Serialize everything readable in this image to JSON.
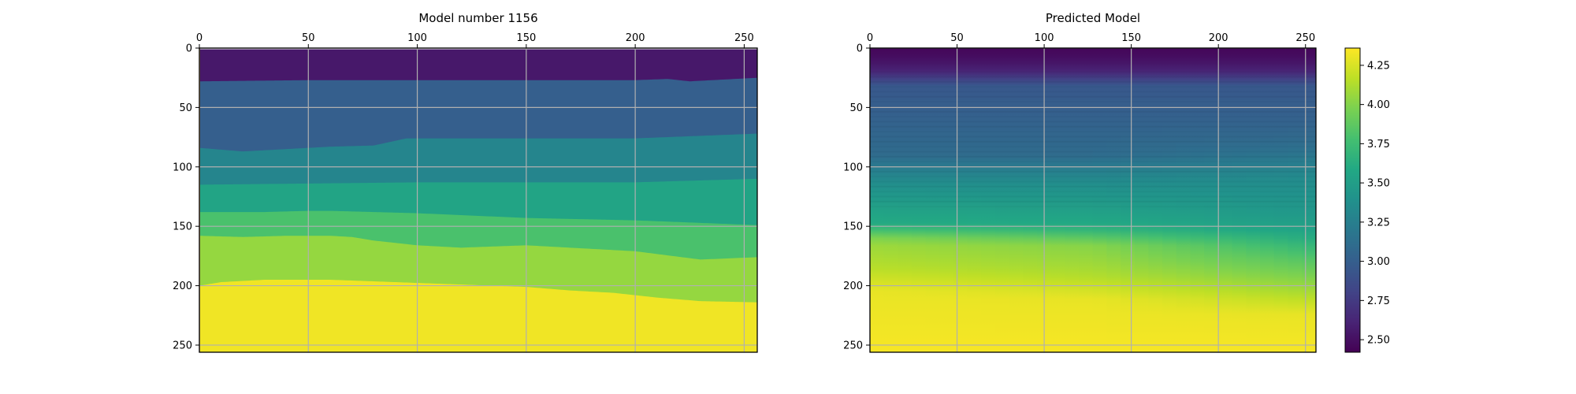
{
  "chart_data": [
    {
      "type": "heatmap",
      "title": "Model number 1156",
      "x_axis": {
        "position": "top",
        "range": [
          0,
          256
        ],
        "ticks": [
          0,
          50,
          100,
          150,
          200,
          250
        ]
      },
      "y_axis": {
        "inverted": true,
        "range": [
          0,
          256
        ],
        "ticks": [
          0,
          50,
          100,
          150,
          200,
          250
        ]
      },
      "grid": true,
      "colormap": "viridis",
      "value_range": [
        2.42,
        4.36
      ],
      "layer_values": [
        2.55,
        3.0,
        3.3,
        3.55,
        3.8,
        4.05,
        4.32
      ],
      "layer_boundaries": [
        {
          "x": [
            0,
            50,
            100,
            150,
            200,
            256
          ],
          "depth": [
            1,
            1,
            1,
            1,
            1,
            1
          ]
        },
        {
          "x": [
            0,
            50,
            100,
            150,
            200,
            215,
            225,
            256
          ],
          "depth": [
            28,
            27,
            27,
            27,
            27,
            26,
            28,
            25
          ]
        },
        {
          "x": [
            0,
            20,
            40,
            60,
            80,
            95,
            100,
            150,
            200,
            256
          ],
          "depth": [
            84,
            87,
            85,
            83,
            82,
            76,
            76,
            76,
            76,
            72
          ]
        },
        {
          "x": [
            0,
            50,
            100,
            150,
            200,
            256
          ],
          "depth": [
            115,
            114,
            113,
            113,
            113,
            110
          ]
        },
        {
          "x": [
            0,
            30,
            50,
            60,
            100,
            150,
            200,
            256
          ],
          "depth": [
            138,
            138,
            137,
            137,
            139,
            143,
            145,
            149
          ]
        },
        {
          "x": [
            0,
            20,
            40,
            60,
            70,
            80,
            100,
            120,
            150,
            200,
            230,
            256
          ],
          "depth": [
            158,
            159,
            158,
            158,
            159,
            162,
            166,
            168,
            166,
            171,
            178,
            176
          ]
        },
        {
          "x": [
            0,
            10,
            30,
            60,
            90,
            120,
            150,
            170,
            190,
            210,
            230,
            256
          ],
          "depth": [
            200,
            197,
            195,
            195,
            197,
            199,
            201,
            204,
            206,
            210,
            213,
            214
          ]
        }
      ]
    },
    {
      "type": "heatmap",
      "title": "Predicted Model",
      "x_axis": {
        "position": "top",
        "range": [
          0,
          256
        ],
        "ticks": [
          0,
          50,
          100,
          150,
          200,
          250
        ]
      },
      "y_axis": {
        "inverted": true,
        "range": [
          0,
          256
        ],
        "ticks": [
          0,
          50,
          100,
          150,
          200,
          250
        ]
      },
      "grid": true,
      "colormap": "viridis",
      "value_range": [
        2.42,
        4.36
      ],
      "velocity_profile_at_x": [
        {
          "x": 0,
          "depth": [
            0,
            10,
            22,
            30,
            60,
            90,
            112,
            132,
            148,
            162,
            185,
            205,
            256
          ],
          "value": [
            2.45,
            2.5,
            2.65,
            2.95,
            3.02,
            3.1,
            3.35,
            3.5,
            3.6,
            4.05,
            4.15,
            4.3,
            4.34
          ]
        },
        {
          "x": 128,
          "depth": [
            0,
            10,
            22,
            30,
            60,
            90,
            112,
            135,
            150,
            165,
            190,
            212,
            256
          ],
          "value": [
            2.45,
            2.5,
            2.65,
            2.95,
            3.02,
            3.1,
            3.35,
            3.5,
            3.6,
            4.0,
            4.12,
            4.3,
            4.34
          ]
        },
        {
          "x": 256,
          "depth": [
            0,
            10,
            22,
            30,
            60,
            80,
            110,
            140,
            155,
            175,
            200,
            225,
            256
          ],
          "value": [
            2.45,
            2.5,
            2.65,
            2.95,
            3.02,
            3.1,
            3.35,
            3.45,
            3.55,
            3.8,
            4.05,
            4.3,
            4.34
          ]
        }
      ]
    }
  ],
  "colorbar": {
    "colormap": "viridis",
    "range": [
      2.42,
      4.36
    ],
    "ticks": [
      "2.50",
      "2.75",
      "3.00",
      "3.25",
      "3.50",
      "3.75",
      "4.00",
      "4.25"
    ],
    "stops": [
      "#440154",
      "#482475",
      "#414487",
      "#355f8d",
      "#2a788e",
      "#21918c",
      "#22a884",
      "#44bf70",
      "#7ad151",
      "#bddf26",
      "#fde725"
    ]
  }
}
